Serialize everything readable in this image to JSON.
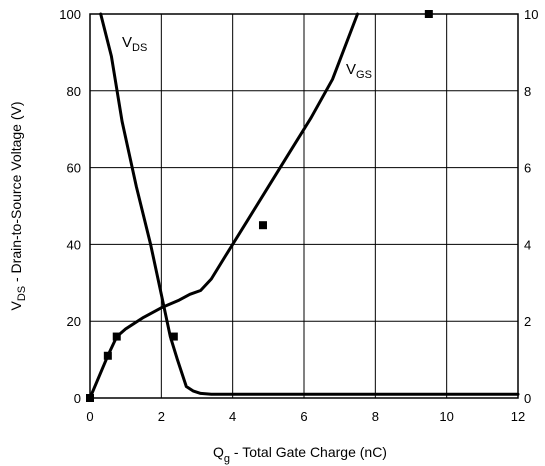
{
  "chart_data": {
    "type": "line",
    "xlabel": {
      "main": "Q",
      "sub": "g",
      "rest": " - Total Gate Charge (nC)"
    },
    "ylabel": {
      "main": "V",
      "sub": "DS",
      "rest": " - Drain-to-Source Voltage (V)"
    },
    "x_ticks": [
      "0",
      "2",
      "4",
      "6",
      "8",
      "10",
      "12"
    ],
    "y_left_ticks": [
      "0",
      "20",
      "40",
      "60",
      "80",
      "100"
    ],
    "y_right_ticks": [
      "0",
      "2",
      "4",
      "6",
      "8",
      "10"
    ],
    "xlim": [
      0,
      12
    ],
    "ylim_left": [
      0,
      100
    ],
    "ylim_right": [
      0,
      10
    ],
    "grid": true,
    "series": [
      {
        "name": {
          "main": "V",
          "sub": "DS"
        },
        "axis": "left",
        "points": [
          [
            0.3,
            100
          ],
          [
            0.6,
            89
          ],
          [
            0.9,
            72
          ],
          [
            1.3,
            55
          ],
          [
            1.7,
            40
          ],
          [
            2.0,
            27
          ],
          [
            2.25,
            16
          ],
          [
            2.45,
            10
          ],
          [
            2.7,
            3
          ],
          [
            2.9,
            1.8
          ],
          [
            3.1,
            1.2
          ],
          [
            3.4,
            1
          ],
          [
            5,
            1
          ],
          [
            8,
            1
          ],
          [
            12,
            1
          ]
        ]
      },
      {
        "name": {
          "main": "V",
          "sub": "GS"
        },
        "axis": "right",
        "points": [
          [
            0,
            0
          ],
          [
            0.5,
            1.1
          ],
          [
            0.75,
            1.6
          ],
          [
            1.0,
            1.8
          ],
          [
            1.5,
            2.1
          ],
          [
            2.0,
            2.35
          ],
          [
            2.5,
            2.55
          ],
          [
            2.8,
            2.7
          ],
          [
            3.1,
            2.8
          ],
          [
            3.4,
            3.1
          ],
          [
            3.8,
            3.7
          ],
          [
            4.4,
            4.6
          ],
          [
            5.0,
            5.5
          ],
          [
            5.6,
            6.4
          ],
          [
            6.2,
            7.3
          ],
          [
            6.8,
            8.3
          ],
          [
            7.5,
            10
          ]
        ]
      }
    ],
    "markers": {
      "axis": "right",
      "points": [
        [
          0,
          0
        ],
        [
          0.5,
          1.1
        ],
        [
          0.75,
          1.6
        ],
        [
          2.35,
          1.6
        ],
        [
          4.85,
          4.5
        ],
        [
          9.5,
          10
        ]
      ]
    }
  }
}
